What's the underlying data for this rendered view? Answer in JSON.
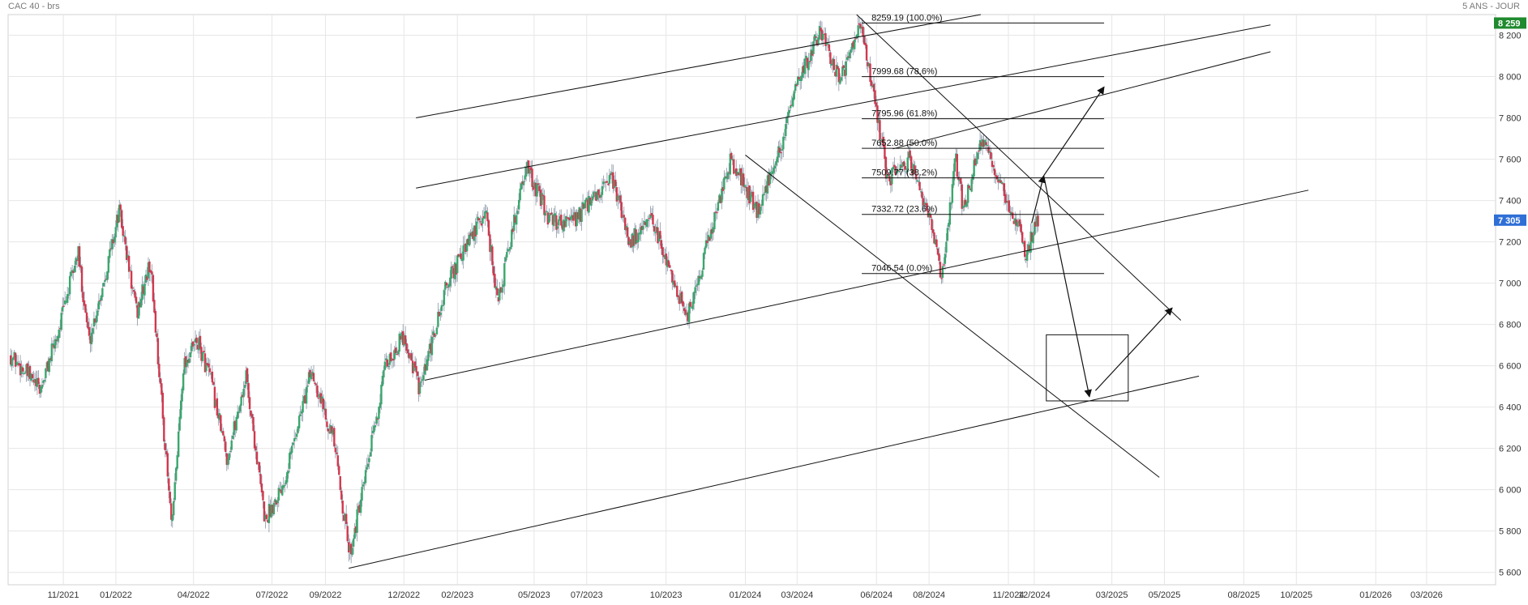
{
  "header": {
    "instrument": "CAC 40 - brs",
    "period": "5 ANS - JOUR"
  },
  "colors": {
    "up": "#3aa76d",
    "down": "#d1384d",
    "grid": "#e6e6e6",
    "line": "#111111",
    "last_tag": "#2f6fd6",
    "high_tag": "#1f8a2e"
  },
  "chart_data": {
    "type": "candlestick",
    "title": "CAC 40 - brs",
    "subtitle": "5 ANS - JOUR",
    "xlabel": "",
    "ylabel": "",
    "x_tick_labels": [
      "11/2021",
      "01/2022",
      "04/2022",
      "07/2022",
      "09/2022",
      "12/2022",
      "02/2023",
      "05/2023",
      "07/2023",
      "10/2023",
      "01/2024",
      "03/2024",
      "06/2024",
      "08/2024",
      "11/2024",
      "12/2024",
      "03/2025",
      "05/2025",
      "08/2025",
      "10/2025",
      "01/2026",
      "03/2026"
    ],
    "y_tick_labels": [
      "5 600",
      "5 800",
      "6 000",
      "6 200",
      "6 400",
      "6 600",
      "6 800",
      "7 000",
      "7 200",
      "7 400",
      "7 600",
      "7 800",
      "8 000",
      "8 200"
    ],
    "ylim": [
      5540,
      8300
    ],
    "grid": true,
    "price_path": [
      [
        "2021-09-01",
        6650
      ],
      [
        "2021-09-20",
        6560
      ],
      [
        "2021-10-05",
        6480
      ],
      [
        "2021-10-25",
        6750
      ],
      [
        "2021-11-18",
        7150
      ],
      [
        "2021-12-01",
        6720
      ],
      [
        "2021-12-20",
        7050
      ],
      [
        "2022-01-05",
        7350
      ],
      [
        "2022-01-25",
        6850
      ],
      [
        "2022-02-10",
        7100
      ],
      [
        "2022-03-07",
        5800
      ],
      [
        "2022-03-20",
        6600
      ],
      [
        "2022-04-05",
        6720
      ],
      [
        "2022-04-20",
        6550
      ],
      [
        "2022-05-10",
        6150
      ],
      [
        "2022-06-01",
        6550
      ],
      [
        "2022-06-23",
        5850
      ],
      [
        "2022-07-15",
        6050
      ],
      [
        "2022-08-16",
        6580
      ],
      [
        "2022-09-10",
        6250
      ],
      [
        "2022-09-29",
        5690
      ],
      [
        "2022-10-15",
        6000
      ],
      [
        "2022-11-10",
        6600
      ],
      [
        "2022-12-01",
        6750
      ],
      [
        "2022-12-20",
        6480
      ],
      [
        "2023-01-20",
        7000
      ],
      [
        "2023-03-06",
        7350
      ],
      [
        "2023-03-20",
        6900
      ],
      [
        "2023-04-21",
        7570
      ],
      [
        "2023-05-20",
        7300
      ],
      [
        "2023-06-15",
        7300
      ],
      [
        "2023-07-31",
        7500
      ],
      [
        "2023-08-20",
        7200
      ],
      [
        "2023-09-15",
        7300
      ],
      [
        "2023-10-26",
        6830
      ],
      [
        "2023-11-25",
        7300
      ],
      [
        "2023-12-15",
        7600
      ],
      [
        "2024-01-15",
        7350
      ],
      [
        "2024-02-10",
        7650
      ],
      [
        "2024-03-01",
        7950
      ],
      [
        "2024-03-28",
        8230
      ],
      [
        "2024-04-20",
        7980
      ],
      [
        "2024-05-15",
        8250
      ],
      [
        "2024-06-14",
        7500
      ],
      [
        "2024-07-10",
        7600
      ],
      [
        "2024-08-05",
        7250
      ],
      [
        "2024-08-15",
        7020
      ],
      [
        "2024-09-01",
        7600
      ],
      [
        "2024-09-10",
        7350
      ],
      [
        "2024-10-01",
        7700
      ],
      [
        "2024-10-20",
        7500
      ],
      [
        "2024-11-10",
        7300
      ],
      [
        "2024-11-21",
        7150
      ],
      [
        "2024-12-06",
        7305
      ]
    ],
    "last_price": "7 305",
    "high_price": "8 259",
    "fibonacci": [
      {
        "label": "8259.19  (100.0%)",
        "value": 8259.19
      },
      {
        "label": "7999.68  (78.6%)",
        "value": 7999.68
      },
      {
        "label": "7795.96  (61.8%)",
        "value": 7795.96
      },
      {
        "label": "7652.88  (50.0%)",
        "value": 7652.88
      },
      {
        "label": "7509.77  (38.2%)",
        "value": 7509.77
      },
      {
        "label": "7332.72  (23.6%)",
        "value": 7332.72
      },
      {
        "label": "7046.54  (0.0%)",
        "value": 7046.54
      }
    ],
    "fib_extent": {
      "from": "2024-05-15",
      "to": "2025-02-20"
    },
    "trendlines": [
      {
        "from": [
          "2022-12-15",
          7800
        ],
        "to": [
          "2024-09-30",
          8300
        ]
      },
      {
        "from": [
          "2022-12-15",
          7460
        ],
        "to": [
          "2025-09-01",
          8250
        ]
      },
      {
        "from": [
          "2024-06-20",
          7650
        ],
        "to": [
          "2025-09-01",
          8120
        ]
      },
      {
        "from": [
          "2022-12-25",
          6530
        ],
        "to": [
          "2025-10-15",
          7450
        ]
      },
      {
        "from": [
          "2022-09-28",
          5620
        ],
        "to": [
          "2025-06-10",
          6550
        ]
      },
      {
        "from": [
          "2024-05-09",
          8300
        ],
        "to": [
          "2025-05-20",
          6820
        ]
      },
      {
        "from": [
          "2024-01-01",
          7620
        ],
        "to": [
          "2025-04-25",
          6060
        ]
      }
    ],
    "arrows": [
      {
        "from": [
          "2024-11-28",
          7290
        ],
        "to": [
          "2024-12-12",
          7520
        ]
      },
      {
        "from": [
          "2024-12-12",
          7520
        ],
        "to": [
          "2025-02-20",
          7950
        ]
      },
      {
        "from": [
          "2024-12-12",
          7520
        ],
        "to": [
          "2025-02-03",
          6450
        ]
      },
      {
        "from": [
          "2025-02-10",
          6480
        ],
        "to": [
          "2025-05-10",
          6880
        ]
      }
    ],
    "target_box": {
      "from": [
        "2024-12-15",
        6750
      ],
      "to": [
        "2025-03-20",
        6430
      ]
    }
  }
}
